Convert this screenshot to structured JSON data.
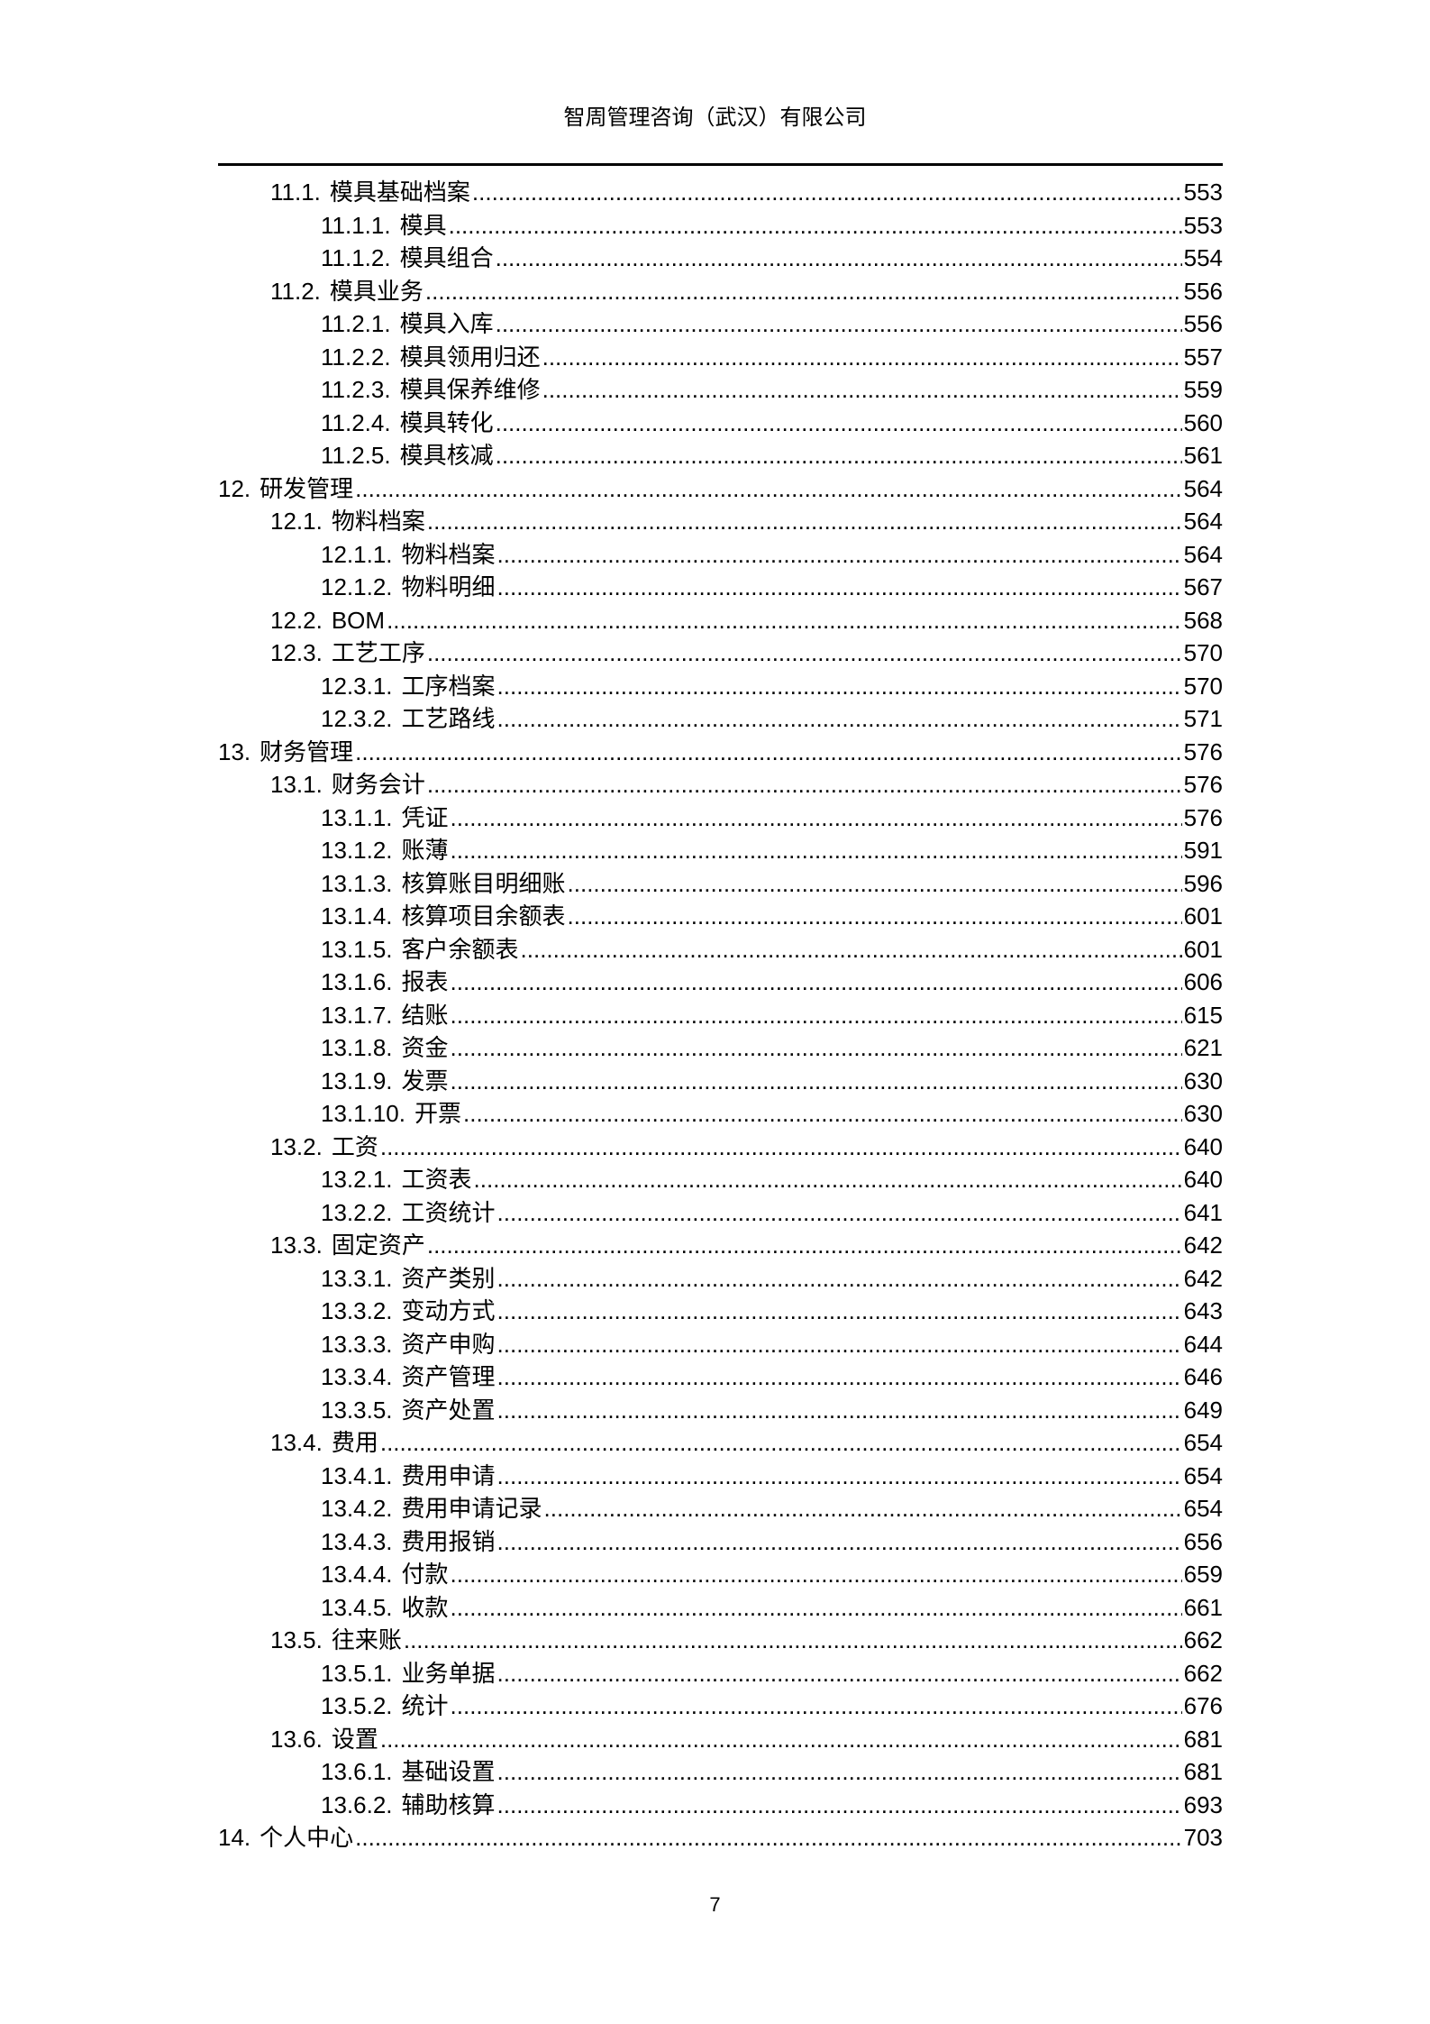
{
  "header": {
    "title": "智周管理咨询（武汉）有限公司"
  },
  "toc": [
    {
      "level": 2,
      "num": "11.1.",
      "title": "模具基础档案",
      "page": "553"
    },
    {
      "level": 3,
      "num": "11.1.1.",
      "title": "模具",
      "page": "553"
    },
    {
      "level": 3,
      "num": "11.1.2.",
      "title": "模具组合",
      "page": "554"
    },
    {
      "level": 2,
      "num": "11.2.",
      "title": "模具业务",
      "page": "556"
    },
    {
      "level": 3,
      "num": "11.2.1.",
      "title": "模具入库",
      "page": "556"
    },
    {
      "level": 3,
      "num": "11.2.2.",
      "title": "模具领用归还",
      "page": "557"
    },
    {
      "level": 3,
      "num": "11.2.3.",
      "title": "模具保养维修",
      "page": "559"
    },
    {
      "level": 3,
      "num": "11.2.4.",
      "title": "模具转化",
      "page": "560"
    },
    {
      "level": 3,
      "num": "11.2.5.",
      "title": "模具核减",
      "page": "561"
    },
    {
      "level": 1,
      "num": "12.",
      "title": "研发管理",
      "page": "564"
    },
    {
      "level": 2,
      "num": "12.1.",
      "title": "物料档案",
      "page": "564"
    },
    {
      "level": 3,
      "num": "12.1.1.",
      "title": "物料档案",
      "page": "564"
    },
    {
      "level": 3,
      "num": "12.1.2.",
      "title": "物料明细",
      "page": "567"
    },
    {
      "level": 2,
      "num": "12.2.",
      "title": "BOM",
      "page": "568"
    },
    {
      "level": 2,
      "num": "12.3.",
      "title": "工艺工序",
      "page": "570"
    },
    {
      "level": 3,
      "num": "12.3.1.",
      "title": "工序档案",
      "page": "570"
    },
    {
      "level": 3,
      "num": "12.3.2.",
      "title": "工艺路线",
      "page": "571"
    },
    {
      "level": 1,
      "num": "13.",
      "title": "财务管理",
      "page": "576"
    },
    {
      "level": 2,
      "num": "13.1.",
      "title": "财务会计",
      "page": "576"
    },
    {
      "level": 3,
      "num": "13.1.1.",
      "title": "凭证",
      "page": "576"
    },
    {
      "level": 3,
      "num": "13.1.2.",
      "title": "账薄",
      "page": "591"
    },
    {
      "level": 3,
      "num": "13.1.3.",
      "title": "核算账目明细账",
      "page": "596"
    },
    {
      "level": 3,
      "num": "13.1.4.",
      "title": "核算项目余额表",
      "page": "601"
    },
    {
      "level": 3,
      "num": "13.1.5.",
      "title": "客户余额表",
      "page": "601"
    },
    {
      "level": 3,
      "num": "13.1.6.",
      "title": "报表",
      "page": "606"
    },
    {
      "level": 3,
      "num": "13.1.7.",
      "title": "结账",
      "page": "615"
    },
    {
      "level": 3,
      "num": "13.1.8.",
      "title": "资金",
      "page": "621"
    },
    {
      "level": 3,
      "num": "13.1.9.",
      "title": "发票",
      "page": "630"
    },
    {
      "level": 3,
      "num": "13.1.10.",
      "title": "开票",
      "page": "630"
    },
    {
      "level": 2,
      "num": "13.2.",
      "title": "工资",
      "page": "640"
    },
    {
      "level": 3,
      "num": "13.2.1.",
      "title": "工资表",
      "page": "640"
    },
    {
      "level": 3,
      "num": "13.2.2.",
      "title": "工资统计",
      "page": "641"
    },
    {
      "level": 2,
      "num": "13.3.",
      "title": "固定资产",
      "page": "642"
    },
    {
      "level": 3,
      "num": "13.3.1.",
      "title": "资产类别",
      "page": "642"
    },
    {
      "level": 3,
      "num": "13.3.2.",
      "title": "变动方式",
      "page": "643"
    },
    {
      "level": 3,
      "num": "13.3.3.",
      "title": "资产申购",
      "page": "644"
    },
    {
      "level": 3,
      "num": "13.3.4.",
      "title": "资产管理",
      "page": "646"
    },
    {
      "level": 3,
      "num": "13.3.5.",
      "title": "资产处置",
      "page": "649"
    },
    {
      "level": 2,
      "num": "13.4.",
      "title": "费用",
      "page": "654"
    },
    {
      "level": 3,
      "num": "13.4.1.",
      "title": "费用申请",
      "page": "654"
    },
    {
      "level": 3,
      "num": "13.4.2.",
      "title": "费用申请记录",
      "page": "654"
    },
    {
      "level": 3,
      "num": "13.4.3.",
      "title": "费用报销",
      "page": "656"
    },
    {
      "level": 3,
      "num": "13.4.4.",
      "title": "付款",
      "page": "659"
    },
    {
      "level": 3,
      "num": "13.4.5.",
      "title": "收款",
      "page": "661"
    },
    {
      "level": 2,
      "num": "13.5.",
      "title": "往来账",
      "page": "662"
    },
    {
      "level": 3,
      "num": "13.5.1.",
      "title": "业务单据",
      "page": "662"
    },
    {
      "level": 3,
      "num": "13.5.2.",
      "title": "统计",
      "page": "676"
    },
    {
      "level": 2,
      "num": "13.6.",
      "title": "设置",
      "page": "681"
    },
    {
      "level": 3,
      "num": "13.6.1.",
      "title": "基础设置",
      "page": "681"
    },
    {
      "level": 3,
      "num": "13.6.2.",
      "title": "辅助核算",
      "page": "693"
    },
    {
      "level": 1,
      "num": "14.",
      "title": "个人中心",
      "page": "703"
    }
  ],
  "footer": {
    "page_number": "7"
  }
}
